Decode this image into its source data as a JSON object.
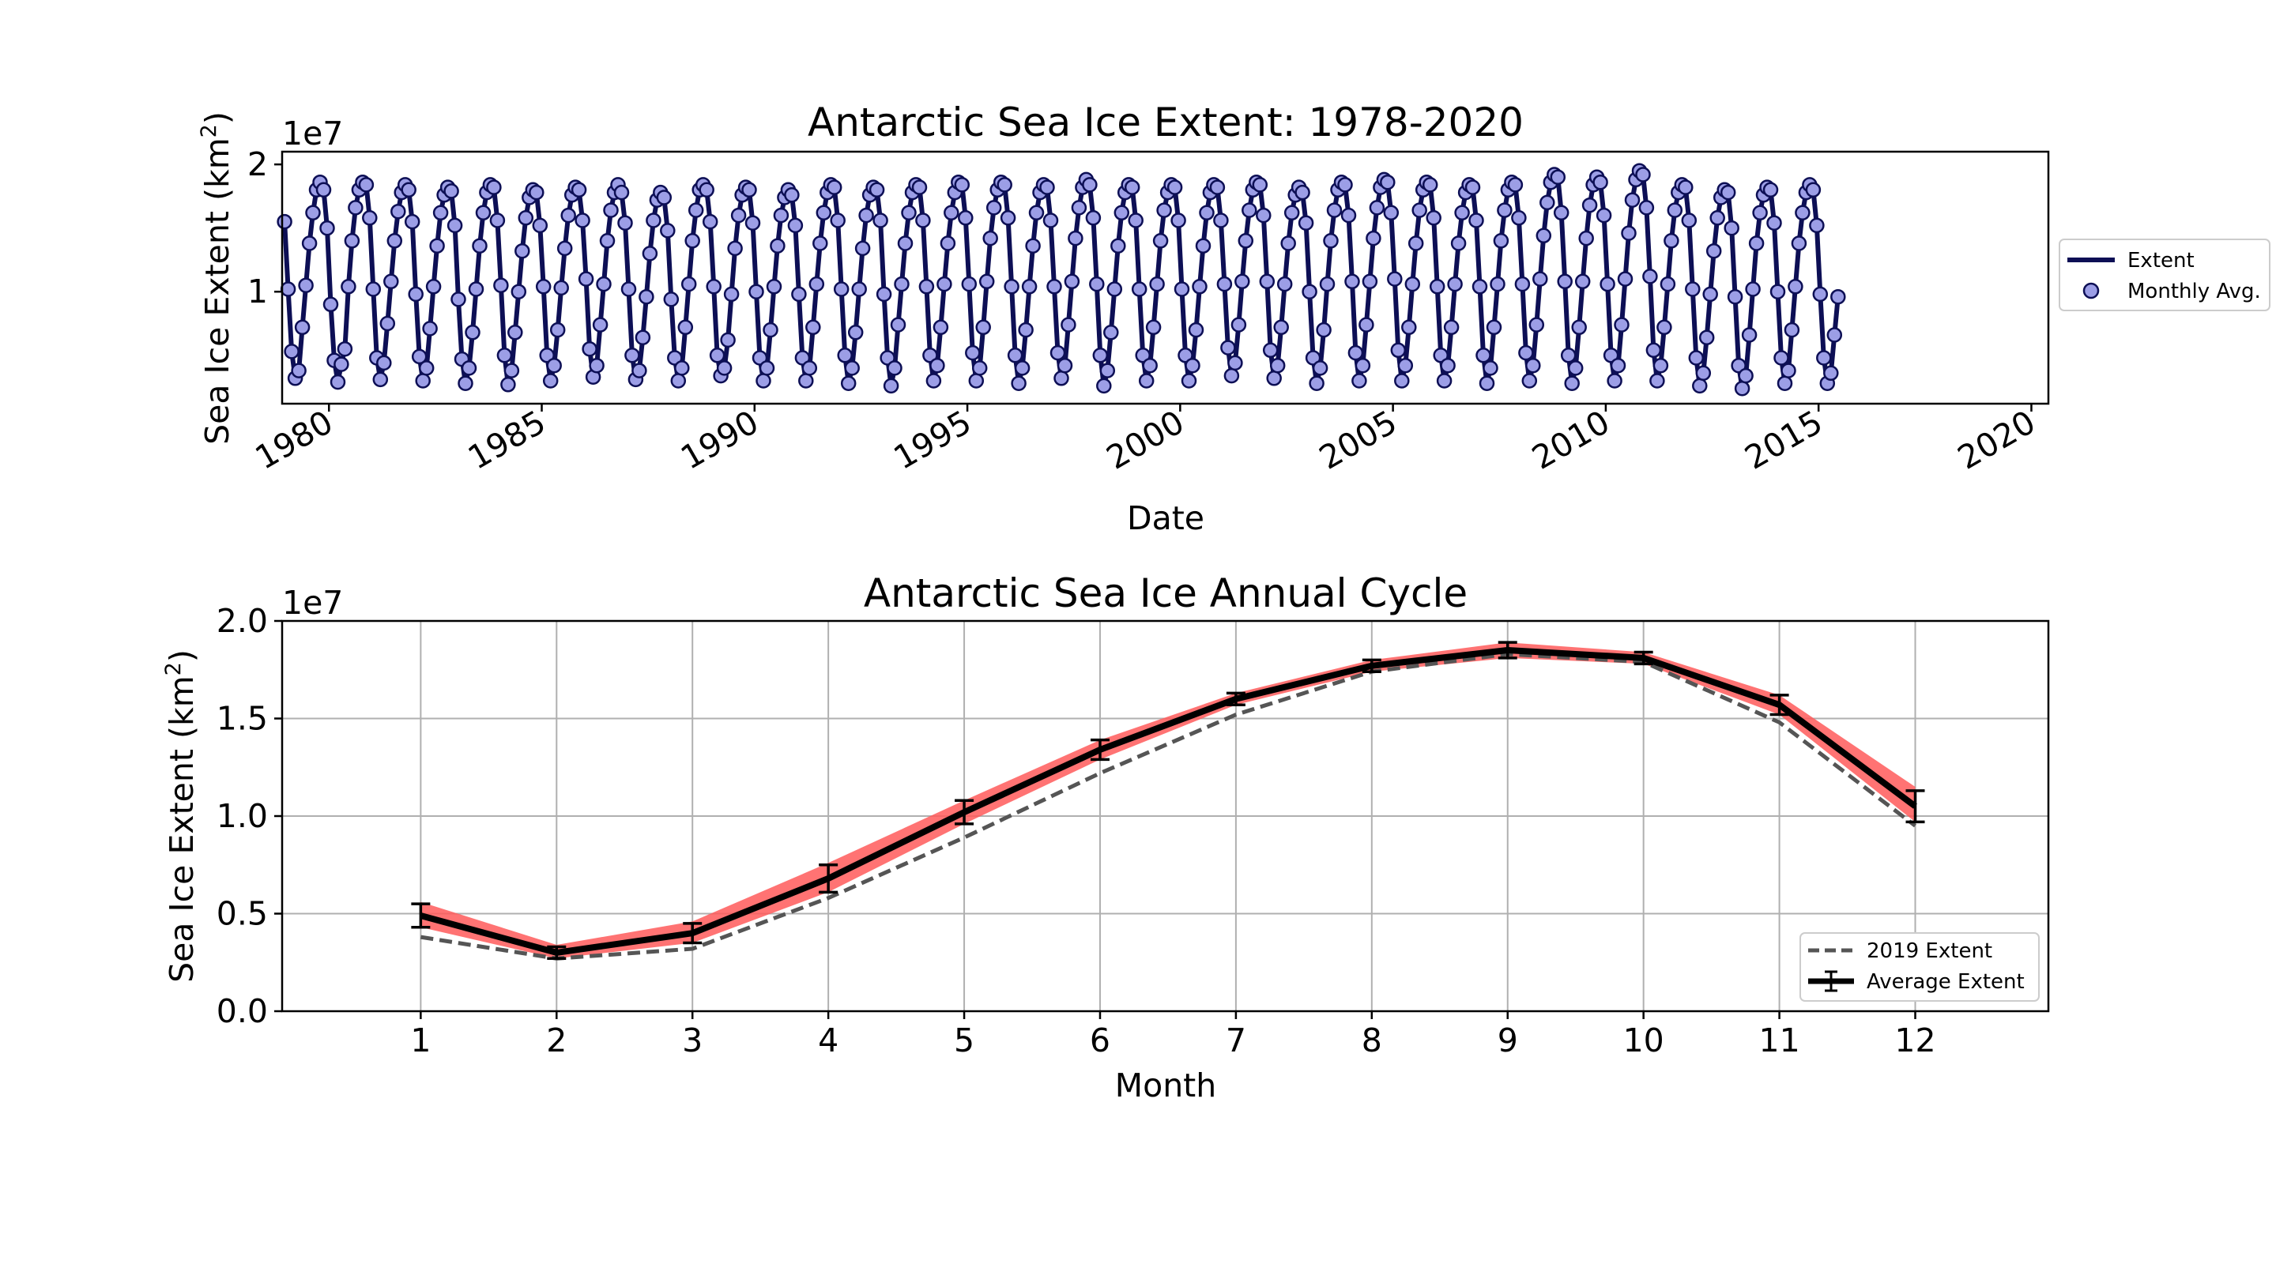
{
  "chart_data": [
    {
      "type": "line",
      "title": "Antarctic Sea Ice Extent: 1978-2020",
      "xlabel": "Date",
      "ylabel_main": "Sea Ice Extent (km",
      "ylabel_sup": "2",
      "ylabel_close": ")",
      "offset_text": "1e7",
      "x_range": [
        1978.9,
        2020.4
      ],
      "ylim": [
        0.12,
        2.1
      ],
      "y_scale_note": "values in units of 1e7 km^2",
      "x_ticks": [
        1980,
        1985,
        1990,
        1995,
        2000,
        2005,
        2010,
        2015,
        2020
      ],
      "x_tick_labels": [
        "1980",
        "1985",
        "1990",
        "1995",
        "2000",
        "2005",
        "2010",
        "2015",
        "2020"
      ],
      "y_ticks": [
        1,
        2
      ],
      "y_tick_labels": [
        "1",
        "2"
      ],
      "grid": false,
      "legend_location": "outside-right",
      "legend": [
        "Extent",
        "Monthly Avg."
      ],
      "series": [
        {
          "name": "Extent",
          "color": "#0d0f55",
          "start_year": 1978.875,
          "step_years": 0.08333,
          "values": [
            1.7,
            1.55,
            1.02,
            0.53,
            0.32,
            0.38,
            0.72,
            1.05,
            1.38,
            1.62,
            1.8,
            1.86,
            1.8,
            1.5,
            0.9,
            0.46,
            0.29,
            0.43,
            0.55,
            1.04,
            1.4,
            1.66,
            1.8,
            1.86,
            1.84,
            1.58,
            1.02,
            0.48,
            0.31,
            0.44,
            0.75,
            1.08,
            1.4,
            1.63,
            1.78,
            1.84,
            1.8,
            1.55,
            0.98,
            0.49,
            0.3,
            0.4,
            0.71,
            1.04,
            1.36,
            1.62,
            1.76,
            1.82,
            1.79,
            1.52,
            0.94,
            0.47,
            0.28,
            0.4,
            0.68,
            1.02,
            1.36,
            1.62,
            1.78,
            1.84,
            1.82,
            1.56,
            1.05,
            0.5,
            0.27,
            0.38,
            0.68,
            1.0,
            1.32,
            1.58,
            1.74,
            1.8,
            1.78,
            1.52,
            1.04,
            0.5,
            0.3,
            0.42,
            0.7,
            1.03,
            1.34,
            1.6,
            1.76,
            1.82,
            1.8,
            1.56,
            1.1,
            0.55,
            0.33,
            0.42,
            0.74,
            1.06,
            1.4,
            1.64,
            1.78,
            1.84,
            1.78,
            1.54,
            1.02,
            0.5,
            0.31,
            0.38,
            0.64,
            0.96,
            1.3,
            1.56,
            1.72,
            1.78,
            1.74,
            1.48,
            0.94,
            0.48,
            0.3,
            0.4,
            0.72,
            1.06,
            1.4,
            1.64,
            1.8,
            1.84,
            1.8,
            1.55,
            1.04,
            0.5,
            0.34,
            0.4,
            0.62,
            0.98,
            1.34,
            1.6,
            1.76,
            1.82,
            1.8,
            1.54,
            1.0,
            0.48,
            0.3,
            0.4,
            0.7,
            1.04,
            1.36,
            1.6,
            1.74,
            1.8,
            1.76,
            1.52,
            0.98,
            0.48,
            0.3,
            0.4,
            0.72,
            1.06,
            1.38,
            1.62,
            1.78,
            1.84,
            1.82,
            1.56,
            1.02,
            0.5,
            0.28,
            0.4,
            0.68,
            1.02,
            1.34,
            1.6,
            1.76,
            1.82,
            1.8,
            1.56,
            0.98,
            0.48,
            0.26,
            0.4,
            0.74,
            1.06,
            1.38,
            1.62,
            1.78,
            1.84,
            1.82,
            1.56,
            1.04,
            0.5,
            0.3,
            0.42,
            0.72,
            1.06,
            1.38,
            1.62,
            1.78,
            1.86,
            1.84,
            1.58,
            1.06,
            0.52,
            0.3,
            0.4,
            0.72,
            1.08,
            1.42,
            1.66,
            1.8,
            1.86,
            1.84,
            1.58,
            1.04,
            0.5,
            0.28,
            0.4,
            0.7,
            1.04,
            1.36,
            1.62,
            1.78,
            1.84,
            1.82,
            1.56,
            1.04,
            0.52,
            0.32,
            0.42,
            0.74,
            1.08,
            1.42,
            1.66,
            1.82,
            1.88,
            1.84,
            1.58,
            1.06,
            0.5,
            0.26,
            0.38,
            0.68,
            1.02,
            1.36,
            1.62,
            1.78,
            1.84,
            1.82,
            1.56,
            1.02,
            0.5,
            0.3,
            0.42,
            0.72,
            1.06,
            1.4,
            1.64,
            1.78,
            1.84,
            1.82,
            1.56,
            1.02,
            0.5,
            0.3,
            0.42,
            0.7,
            1.04,
            1.36,
            1.62,
            1.78,
            1.84,
            1.82,
            1.56,
            1.06,
            0.56,
            0.34,
            0.44,
            0.74,
            1.08,
            1.4,
            1.64,
            1.8,
            1.86,
            1.84,
            1.6,
            1.08,
            0.54,
            0.32,
            0.42,
            0.72,
            1.06,
            1.38,
            1.62,
            1.76,
            1.82,
            1.78,
            1.54,
            1.0,
            0.48,
            0.28,
            0.4,
            0.7,
            1.06,
            1.4,
            1.64,
            1.8,
            1.86,
            1.84,
            1.6,
            1.08,
            0.52,
            0.3,
            0.42,
            0.74,
            1.08,
            1.42,
            1.66,
            1.82,
            1.88,
            1.86,
            1.62,
            1.1,
            0.54,
            0.3,
            0.42,
            0.72,
            1.06,
            1.38,
            1.64,
            1.8,
            1.86,
            1.84,
            1.58,
            1.04,
            0.5,
            0.3,
            0.42,
            0.72,
            1.06,
            1.38,
            1.62,
            1.78,
            1.84,
            1.82,
            1.56,
            1.04,
            0.5,
            0.28,
            0.4,
            0.72,
            1.06,
            1.4,
            1.64,
            1.8,
            1.86,
            1.84,
            1.58,
            1.06,
            0.52,
            0.3,
            0.42,
            0.74,
            1.1,
            1.44,
            1.7,
            1.86,
            1.92,
            1.9,
            1.62,
            1.08,
            0.5,
            0.28,
            0.4,
            0.72,
            1.08,
            1.42,
            1.68,
            1.84,
            1.9,
            1.86,
            1.6,
            1.06,
            0.5,
            0.3,
            0.42,
            0.74,
            1.1,
            1.46,
            1.72,
            1.88,
            1.95,
            1.92,
            1.66,
            1.12,
            0.54,
            0.3,
            0.42,
            0.72,
            1.06,
            1.4,
            1.64,
            1.78,
            1.84,
            1.82,
            1.56,
            1.02,
            0.48,
            0.26,
            0.36,
            0.64,
            0.98,
            1.32,
            1.58,
            1.74,
            1.8,
            1.78,
            1.5,
            0.96,
            0.42,
            0.24,
            0.34,
            0.66,
            1.02,
            1.38,
            1.62,
            1.76,
            1.82,
            1.8,
            1.54,
            1.0,
            0.48,
            0.28,
            0.38,
            0.7,
            1.04,
            1.38,
            1.62,
            1.78,
            1.84,
            1.8,
            1.52,
            0.98,
            0.48,
            0.28,
            0.36,
            0.66,
            0.96
          ]
        },
        {
          "name": "Monthly Avg.",
          "color": "#9c9ee6",
          "edge_color": "#0d0f55",
          "marker": "circle"
        }
      ]
    },
    {
      "type": "line",
      "title": "Antarctic Sea Ice Annual Cycle",
      "xlabel": "Month",
      "ylabel_main": "Sea Ice Extent (km",
      "ylabel_sup": "2",
      "ylabel_close": ")",
      "offset_text": "1e7",
      "xlim": [
        -0.02,
        12.98
      ],
      "ylim": [
        0.0,
        2.0
      ],
      "y_scale_note": "values in units of 1e7 km^2",
      "categories": [
        1,
        2,
        3,
        4,
        5,
        6,
        7,
        8,
        9,
        10,
        11,
        12
      ],
      "x_tick_labels": [
        "1",
        "2",
        "3",
        "4",
        "5",
        "6",
        "7",
        "8",
        "9",
        "10",
        "11",
        "12"
      ],
      "y_ticks": [
        0.0,
        0.5,
        1.0,
        1.5,
        2.0
      ],
      "y_tick_labels": [
        "0.0",
        "0.5",
        "1.0",
        "1.5",
        "2.0"
      ],
      "grid": true,
      "legend_location": "lower-right",
      "legend": [
        "2019 Extent",
        "Average Extent"
      ],
      "series": [
        {
          "name": "Average Extent",
          "color": "#000000",
          "values": [
            0.49,
            0.3,
            0.4,
            0.68,
            1.02,
            1.34,
            1.6,
            1.77,
            1.85,
            1.81,
            1.57,
            1.05
          ],
          "error": [
            0.06,
            0.03,
            0.05,
            0.07,
            0.06,
            0.05,
            0.03,
            0.03,
            0.04,
            0.03,
            0.05,
            0.08
          ]
        },
        {
          "name": "2019 Extent",
          "color": "#555555",
          "dash": true,
          "values": [
            0.38,
            0.27,
            0.32,
            0.58,
            0.89,
            1.22,
            1.52,
            1.74,
            1.83,
            1.79,
            1.48,
            0.95
          ]
        },
        {
          "name": "range-band",
          "color": "#ff5a5a",
          "lower": [
            0.43,
            0.27,
            0.35,
            0.61,
            0.96,
            1.29,
            1.57,
            1.74,
            1.81,
            1.78,
            1.52,
            0.97
          ],
          "upper": [
            0.56,
            0.34,
            0.46,
            0.76,
            1.08,
            1.39,
            1.63,
            1.8,
            1.89,
            1.84,
            1.62,
            1.15
          ]
        }
      ]
    }
  ]
}
